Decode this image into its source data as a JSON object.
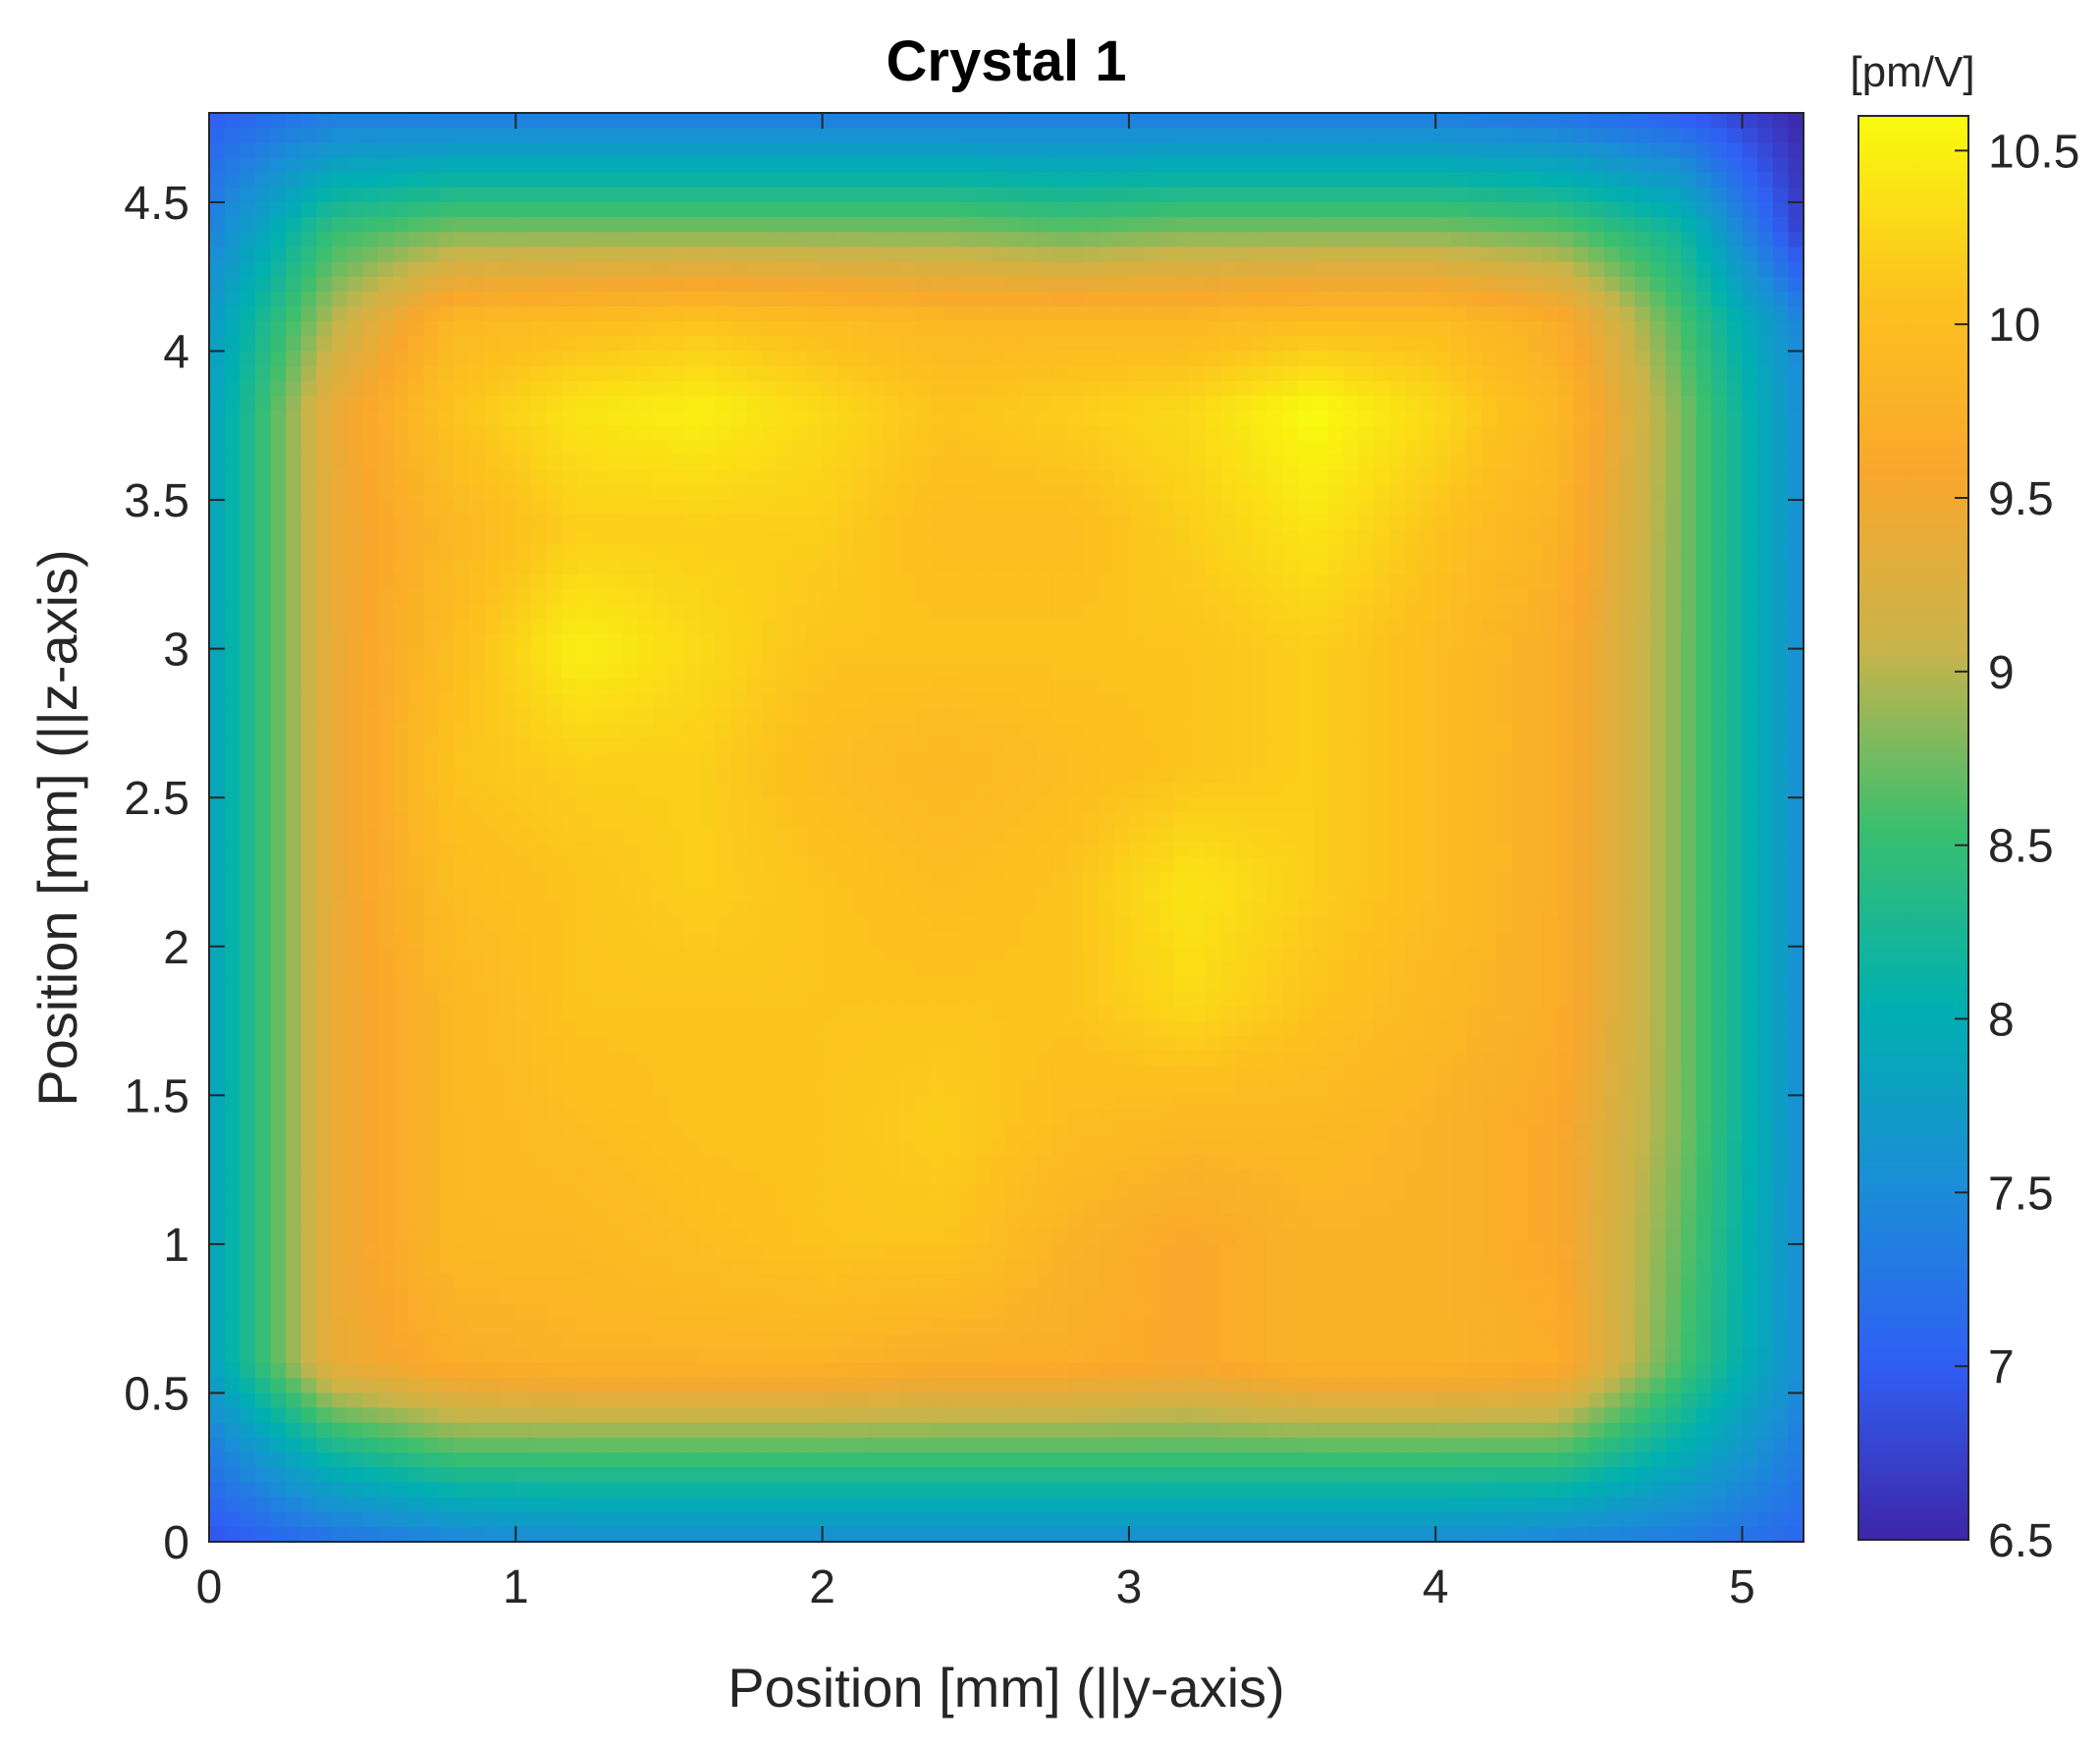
{
  "chart_data": {
    "type": "heatmap",
    "title": "Crystal 1",
    "xlabel": "Position [mm] (||y-axis)",
    "ylabel": "Position [mm] (||z-axis)",
    "xlim": [
      0,
      5.2
    ],
    "ylim": [
      0,
      4.8
    ],
    "xticks": [
      0,
      1,
      2,
      3,
      4,
      5
    ],
    "yticks": [
      0,
      0.5,
      1,
      1.5,
      2,
      2.5,
      3,
      3.5,
      4,
      4.5
    ],
    "colorbar": {
      "label": "[pm/V]",
      "range": [
        6.5,
        10.6
      ],
      "ticks": [
        6.5,
        7,
        7.5,
        8,
        8.5,
        9,
        9.5,
        10,
        10.5
      ],
      "colormap": "parula",
      "colors": [
        "#3e26a8",
        "#2f60f4",
        "#1a8ed6",
        "#00b0b0",
        "#3bbf6e",
        "#c8b44a",
        "#f9a72c",
        "#fcc21e",
        "#f9fb0e"
      ]
    },
    "grid": false,
    "x": [
      0.0,
      0.4,
      0.8,
      1.2,
      1.6,
      2.0,
      2.4,
      2.8,
      3.2,
      3.6,
      4.0,
      4.4,
      4.8,
      5.2
    ],
    "y": [
      0.0,
      0.3,
      0.6,
      1.0,
      1.4,
      1.8,
      2.2,
      2.6,
      3.0,
      3.4,
      3.8,
      4.1,
      4.4,
      4.8
    ],
    "z": [
      [
        6.9,
        7.2,
        7.4,
        7.5,
        7.5,
        7.5,
        7.5,
        7.5,
        7.5,
        7.5,
        7.5,
        7.4,
        7.3,
        7.1
      ],
      [
        7.3,
        8.2,
        8.6,
        8.6,
        8.6,
        8.6,
        8.6,
        8.6,
        8.6,
        8.6,
        8.6,
        8.6,
        8.0,
        7.3
      ],
      [
        7.8,
        9.4,
        9.7,
        9.8,
        9.8,
        9.8,
        9.7,
        9.7,
        9.6,
        9.8,
        9.8,
        9.7,
        8.6,
        7.5
      ],
      [
        7.8,
        9.4,
        9.9,
        9.9,
        10.0,
        10.1,
        10.1,
        9.8,
        9.6,
        9.8,
        9.8,
        9.6,
        8.7,
        7.5
      ],
      [
        7.8,
        9.4,
        9.9,
        10.0,
        10.1,
        10.1,
        10.2,
        10.0,
        9.9,
        9.9,
        9.8,
        9.6,
        8.8,
        7.5
      ],
      [
        7.8,
        9.4,
        9.9,
        10.1,
        10.1,
        10.1,
        10.1,
        10.1,
        10.3,
        10.1,
        9.9,
        9.7,
        8.8,
        7.5
      ],
      [
        7.8,
        9.4,
        10.0,
        10.1,
        10.2,
        10.1,
        10.0,
        10.1,
        10.4,
        10.2,
        10.0,
        9.7,
        8.8,
        7.5
      ],
      [
        7.8,
        9.4,
        10.1,
        10.2,
        10.2,
        10.0,
        9.9,
        10.0,
        10.1,
        10.2,
        10.0,
        9.7,
        8.8,
        7.5
      ],
      [
        7.8,
        9.4,
        10.0,
        10.5,
        10.3,
        10.1,
        10.1,
        10.1,
        10.1,
        10.2,
        10.0,
        9.7,
        8.8,
        7.5
      ],
      [
        7.8,
        9.4,
        9.9,
        10.2,
        10.2,
        10.2,
        10.0,
        10.0,
        10.2,
        10.4,
        10.1,
        9.8,
        8.8,
        7.5
      ],
      [
        7.8,
        9.4,
        10.1,
        10.4,
        10.5,
        10.3,
        10.1,
        10.2,
        10.3,
        10.6,
        10.3,
        9.9,
        8.8,
        7.5
      ],
      [
        7.7,
        9.0,
        9.9,
        10.0,
        10.1,
        10.0,
        9.9,
        9.9,
        9.9,
        10.0,
        10.0,
        9.7,
        8.6,
        7.4
      ],
      [
        7.4,
        8.5,
        8.8,
        8.8,
        8.8,
        8.8,
        8.8,
        8.7,
        8.8,
        8.8,
        8.8,
        8.7,
        8.2,
        6.7
      ],
      [
        7.0,
        7.3,
        7.3,
        7.3,
        7.3,
        7.3,
        7.3,
        7.3,
        7.3,
        7.3,
        7.3,
        7.2,
        7.0,
        6.5
      ]
    ]
  }
}
